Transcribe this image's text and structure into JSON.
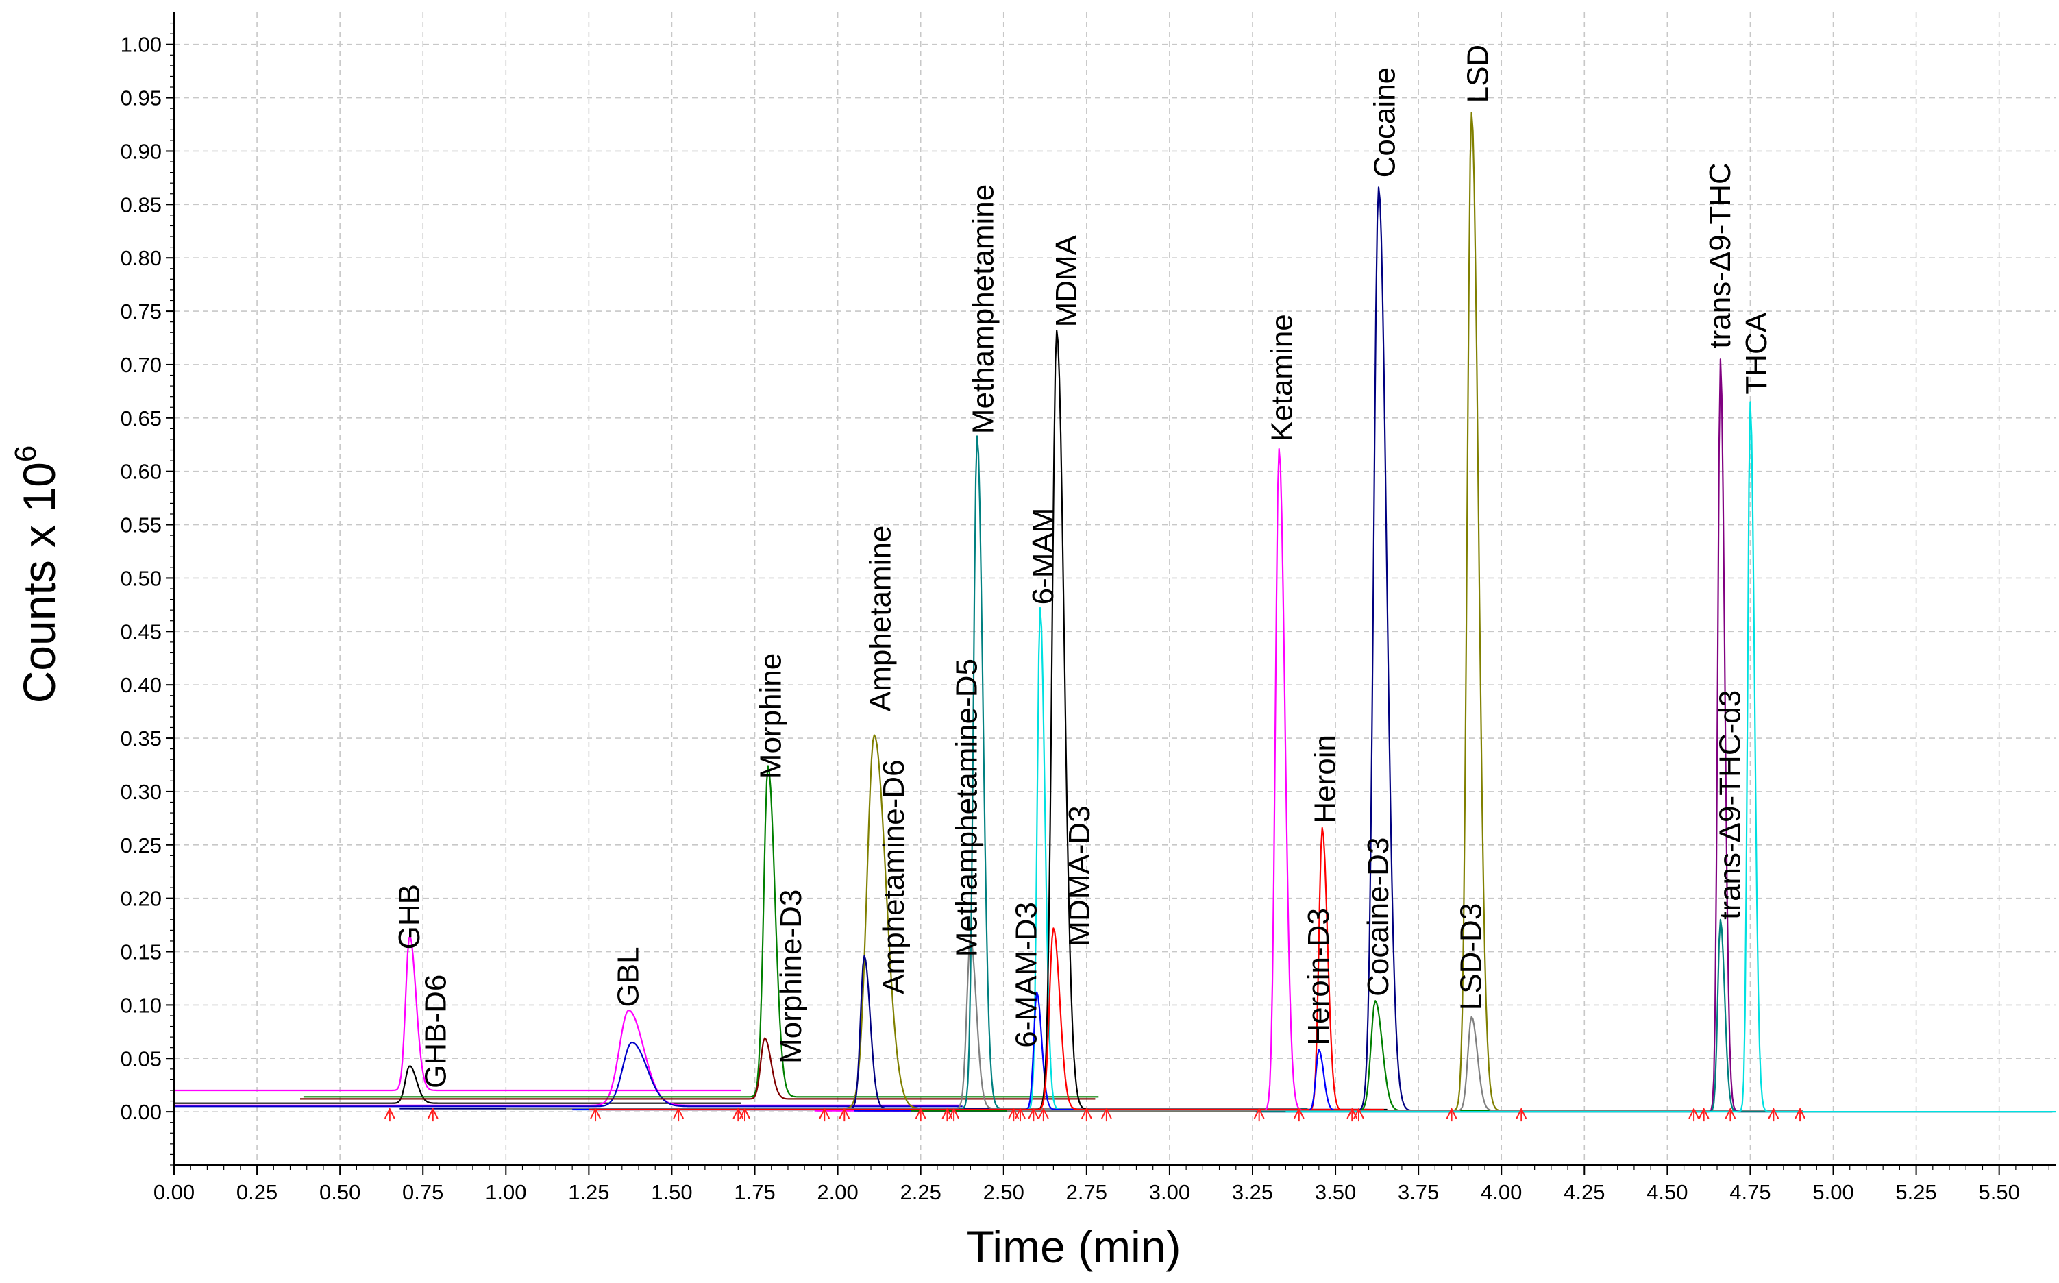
{
  "chart_data": {
    "type": "line",
    "title": "",
    "xlabel": "Time (min)",
    "ylabel_main": "Counts x 10",
    "ylabel_exp": "6",
    "xlim": [
      0.0,
      5.67
    ],
    "ylim": [
      -0.05,
      1.03
    ],
    "x_ticks": [
      0,
      0.25,
      0.5,
      0.75,
      1.0,
      1.25,
      1.5,
      1.75,
      2.0,
      2.25,
      2.5,
      2.75,
      3.0,
      3.25,
      3.5,
      3.75,
      4.0,
      4.25,
      4.5,
      4.75,
      5.0,
      5.25,
      5.5
    ],
    "x_tick_labels": [
      "0.00",
      "0.25",
      "0.50",
      "0.75",
      "1.00",
      "1.25",
      "1.50",
      "1.75",
      "2.00",
      "2.25",
      "2.50",
      "2.75",
      "3.00",
      "3.25",
      "3.50",
      "3.75",
      "4.00",
      "4.25",
      "4.50",
      "4.75",
      "5.00",
      "5.25",
      "5.50"
    ],
    "y_ticks": [
      0,
      0.05,
      0.1,
      0.15,
      0.2,
      0.25,
      0.3,
      0.35,
      0.4,
      0.45,
      0.5,
      0.55,
      0.6,
      0.65,
      0.7,
      0.75,
      0.8,
      0.85,
      0.9,
      0.95,
      1.0
    ],
    "y_tick_labels": [
      "0.00",
      "0.05",
      "0.10",
      "0.15",
      "0.20",
      "0.25",
      "0.30",
      "0.35",
      "0.40",
      "0.45",
      "0.50",
      "0.55",
      "0.60",
      "0.65",
      "0.70",
      "0.75",
      "0.80",
      "0.85",
      "0.90",
      "0.95",
      "1.00"
    ],
    "grid": true,
    "series": [
      {
        "name": "GHB",
        "rt": 0.71,
        "height": 0.145,
        "sigma": 0.012,
        "baseline": 0.02,
        "color": "#ff00ff"
      },
      {
        "name": "GHB-D6",
        "rt": 0.71,
        "height": 0.035,
        "sigma": 0.013,
        "baseline": 0.008,
        "color": "#000000"
      },
      {
        "name": "GBL",
        "rt": 1.37,
        "height": 0.089,
        "sigma": 0.028,
        "baseline": 0.006,
        "color": "#ff00ff"
      },
      {
        "name": "GBL (blue trace)",
        "rt": 1.38,
        "height": 0.06,
        "sigma": 0.028,
        "baseline": 0.005,
        "color": "#0000c8"
      },
      {
        "name": "Morphine",
        "rt": 1.79,
        "height": 0.31,
        "sigma": 0.013,
        "baseline": 0.014,
        "color": "#008000"
      },
      {
        "name": "Morphine-D3",
        "rt": 1.78,
        "height": 0.057,
        "sigma": 0.012,
        "baseline": 0.012,
        "color": "#800000"
      },
      {
        "name": "Amphetamine",
        "rt": 2.11,
        "height": 0.35,
        "sigma": 0.022,
        "baseline": 0.003,
        "color": "#808000"
      },
      {
        "name": "Amphetamine-D6",
        "rt": 2.08,
        "height": 0.143,
        "sigma": 0.011,
        "baseline": 0.003,
        "color": "#000080"
      },
      {
        "name": "Methamphetamine",
        "rt": 2.42,
        "height": 0.63,
        "sigma": 0.011,
        "baseline": 0.003,
        "color": "#008080"
      },
      {
        "name": "Methamphetamine-D5",
        "rt": 2.4,
        "height": 0.16,
        "sigma": 0.011,
        "baseline": 0.003,
        "color": "#808080"
      },
      {
        "name": "6-MAM",
        "rt": 2.61,
        "height": 0.47,
        "sigma": 0.009,
        "baseline": 0.002,
        "color": "#00e0e0"
      },
      {
        "name": "6-MAM-D3",
        "rt": 2.6,
        "height": 0.11,
        "sigma": 0.009,
        "baseline": 0.002,
        "color": "#0000ff"
      },
      {
        "name": "MDMA",
        "rt": 2.66,
        "height": 0.73,
        "sigma": 0.014,
        "baseline": 0.002,
        "color": "#000000"
      },
      {
        "name": "MDMA-D3",
        "rt": 2.65,
        "height": 0.17,
        "sigma": 0.012,
        "baseline": 0.002,
        "color": "#ff0000"
      },
      {
        "name": "Ketamine",
        "rt": 3.33,
        "height": 0.62,
        "sigma": 0.011,
        "baseline": 0.001,
        "color": "#ff00ff"
      },
      {
        "name": "Heroin",
        "rt": 3.46,
        "height": 0.265,
        "sigma": 0.01,
        "baseline": 0.001,
        "color": "#ff0000"
      },
      {
        "name": "Heroin-D3",
        "rt": 3.45,
        "height": 0.057,
        "sigma": 0.009,
        "baseline": 0.001,
        "color": "#0000ff"
      },
      {
        "name": "Cocaine",
        "rt": 3.63,
        "height": 0.865,
        "sigma": 0.015,
        "baseline": 0.001,
        "color": "#000080"
      },
      {
        "name": "Cocaine-D3",
        "rt": 3.62,
        "height": 0.103,
        "sigma": 0.013,
        "baseline": 0.001,
        "color": "#008000"
      },
      {
        "name": "LSD",
        "rt": 3.91,
        "height": 0.935,
        "sigma": 0.013,
        "baseline": 0.001,
        "color": "#808000"
      },
      {
        "name": "LSD-D3",
        "rt": 3.91,
        "height": 0.088,
        "sigma": 0.011,
        "baseline": 0.001,
        "color": "#808080"
      },
      {
        "name": "trans-Δ9-THC",
        "rt": 4.66,
        "height": 0.705,
        "sigma": 0.008,
        "baseline": 0.0,
        "color": "#800080"
      },
      {
        "name": "trans-Δ9-THC-d3",
        "rt": 4.66,
        "height": 0.18,
        "sigma": 0.008,
        "baseline": 0.0,
        "color": "#008080"
      },
      {
        "name": "THCA",
        "rt": 4.75,
        "height": 0.665,
        "sigma": 0.008,
        "baseline": 0.0,
        "color": "#00e0e0"
      }
    ],
    "peak_labels": [
      {
        "text": "GHB",
        "x": 0.71,
        "y": 0.152
      },
      {
        "text": "GHB-D6",
        "x": 0.79,
        "y": 0.022
      },
      {
        "text": "GBL",
        "x": 1.37,
        "y": 0.098
      },
      {
        "text": "Morphine",
        "x": 1.8,
        "y": 0.312
      },
      {
        "text": "Morphine-D3",
        "x": 1.86,
        "y": 0.045
      },
      {
        "text": "Amphetamine",
        "x": 2.13,
        "y": 0.375
      },
      {
        "text": "Amphetamine-D6",
        "x": 2.17,
        "y": 0.11
      },
      {
        "text": "Methamphetamine",
        "x": 2.44,
        "y": 0.635
      },
      {
        "text": "Methamphetamine-D5",
        "x": 2.39,
        "y": 0.145
      },
      {
        "text": "6-MAM",
        "x": 2.62,
        "y": 0.475
      },
      {
        "text": "6-MAM-D3",
        "x": 2.57,
        "y": 0.06
      },
      {
        "text": "MDMA",
        "x": 2.69,
        "y": 0.735
      },
      {
        "text": "MDMA-D3",
        "x": 2.73,
        "y": 0.155
      },
      {
        "text": "Ketamine",
        "x": 3.34,
        "y": 0.628
      },
      {
        "text": "Heroin",
        "x": 3.47,
        "y": 0.27
      },
      {
        "text": "Heroin-D3",
        "x": 3.45,
        "y": 0.062
      },
      {
        "text": "Cocaine",
        "x": 3.65,
        "y": 0.875
      },
      {
        "text": "Cocaine-D3",
        "x": 3.63,
        "y": 0.108
      },
      {
        "text": "LSD",
        "x": 3.93,
        "y": 0.945
      },
      {
        "text": "LSD-D3",
        "x": 3.91,
        "y": 0.095
      },
      {
        "text": "trans-Δ9-THC",
        "x": 4.66,
        "y": 0.715
      },
      {
        "text": "trans-Δ9-THC-d3",
        "x": 4.69,
        "y": 0.18
      },
      {
        "text": "THCA",
        "x": 4.77,
        "y": 0.672
      }
    ],
    "integration_markers_x": [
      0.65,
      0.78,
      1.27,
      1.52,
      1.7,
      1.72,
      1.96,
      2.02,
      2.25,
      2.33,
      2.35,
      2.53,
      2.55,
      2.59,
      2.62,
      2.75,
      2.81,
      3.27,
      3.39,
      3.55,
      3.57,
      3.85,
      4.06,
      4.58,
      4.61,
      4.69,
      4.82,
      4.9
    ]
  }
}
